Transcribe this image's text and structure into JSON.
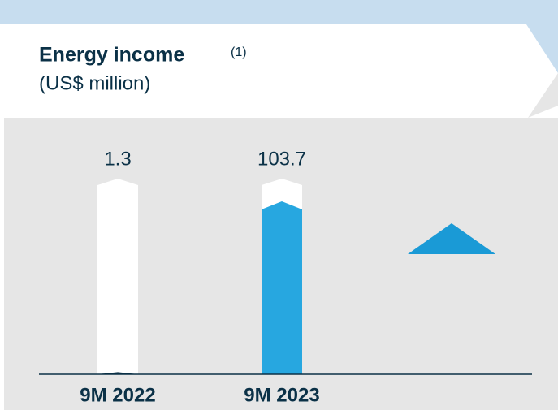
{
  "chart_data": {
    "type": "bar",
    "title": "Energy income",
    "title_note": "(1)",
    "subtitle": "(US$ million)",
    "categories": [
      "9M 2022",
      "9M 2023"
    ],
    "values": [
      1.3,
      103.7
    ],
    "colors": [
      "#0b3147",
      "#27a7e0"
    ],
    "ylim": [
      0,
      110
    ]
  }
}
